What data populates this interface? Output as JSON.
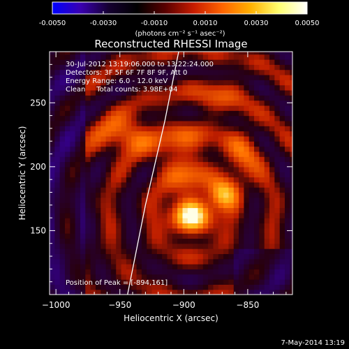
{
  "chart_data": {
    "type": "heatmap",
    "title": "Reconstructed RHESSI Image",
    "xlabel": "Heliocentric X (arcsec)",
    "ylabel": "Heliocentric Y (arcsec)",
    "xlim": [
      -1005,
      -815
    ],
    "ylim": [
      100,
      290
    ],
    "x_ticks": [
      -1000,
      -950,
      -900,
      -850
    ],
    "y_ticks": [
      150,
      200,
      250
    ],
    "grid": false,
    "colorbar": {
      "min": -0.005,
      "max": 0.005,
      "ticks": [
        "-0.0050",
        "-0.0030",
        "-0.0010",
        "0.0010",
        "0.0030",
        "0.0050"
      ],
      "label": "(photons cm⁻² s⁻¹ asec⁻²)",
      "stops": [
        "#0000ff",
        "#3a00b0",
        "#150030",
        "#000000",
        "#5a0000",
        "#c81c00",
        "#ff6400",
        "#ffb000",
        "#ffff70",
        "#ffffff"
      ]
    },
    "annotations": [
      "30-Jul-2012 13:19:06.000 to 13:22:24.000",
      "Detectors: 3F 5F 6F 7F 8F 9F, Att 0",
      "Energy Range: 6.0 - 12.0 keV",
      "Clean     Total counts: 3.98E+04"
    ],
    "peak": {
      "label": "Position of Peak = [-894,161]",
      "x": -894,
      "y": 161
    },
    "sources": [
      {
        "x": -894,
        "y": 161,
        "amp": 0.005,
        "sx": 12,
        "sy": 10
      },
      {
        "x": -870,
        "y": 178,
        "amp": 0.003,
        "sx": 8,
        "sy": 8
      },
      {
        "x": -945,
        "y": 225,
        "amp": 0.0027,
        "sx": 16,
        "sy": 10
      },
      {
        "x": -900,
        "y": 205,
        "amp": 0.002,
        "sx": 14,
        "sy": 20
      },
      {
        "x": -855,
        "y": 205,
        "amp": 0.0018,
        "sx": 10,
        "sy": 18
      },
      {
        "x": -872,
        "y": 255,
        "amp": 0.0012,
        "sx": 14,
        "sy": 12
      }
    ],
    "limb": [
      [
        -944,
        100
      ],
      [
        -930,
        170
      ],
      [
        -915,
        235
      ],
      [
        -904,
        290
      ]
    ]
  },
  "footer": {
    "date": "7-May-2014 13:19"
  }
}
